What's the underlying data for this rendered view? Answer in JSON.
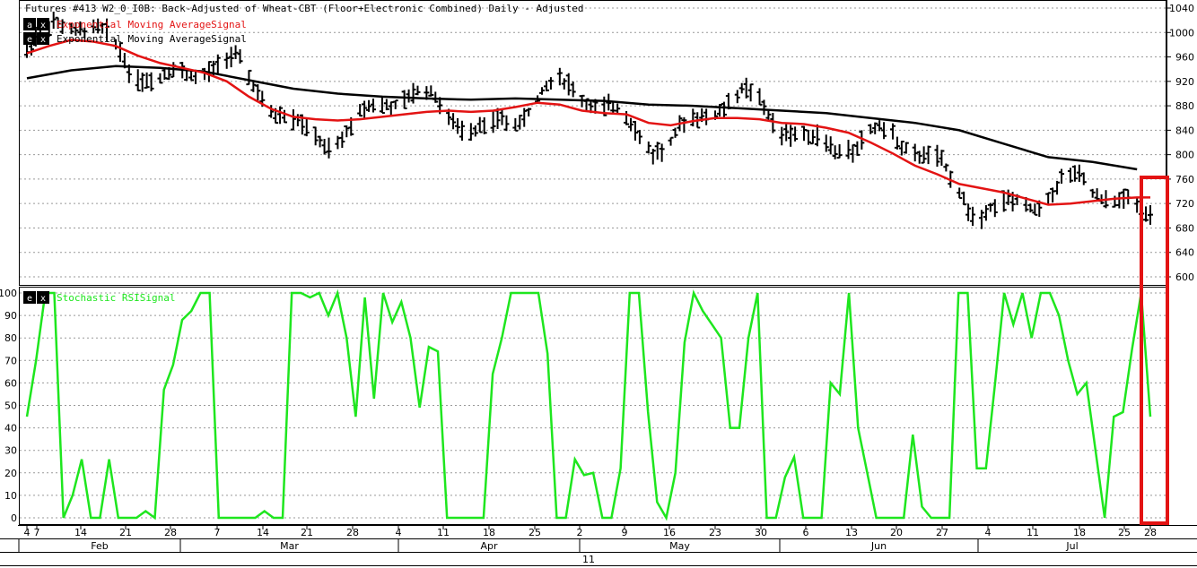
{
  "header": {
    "title": "Futures #413 W2_0_I0B: Back-Adjusted of Wheat-CBT (Floor+Electronic Combined) Daily -  Adjusted",
    "legend_price": [
      {
        "buttons": [
          "a",
          "x"
        ],
        "label": "Exponential Moving AverageSignal",
        "color": "#e31313"
      },
      {
        "buttons": [
          "e",
          "x"
        ],
        "label": "Exponential Moving AverageSignal",
        "color": "#000000"
      }
    ],
    "legend_indicator": {
      "buttons": [
        "e",
        "x"
      ],
      "label": "Stochastic RSISignal",
      "color": "#1ee61e"
    }
  },
  "axis": {
    "date_ticks": [
      "4",
      "7",
      "14",
      "21",
      "28",
      "7",
      "14",
      "21",
      "28",
      "4",
      "11",
      "18",
      "25",
      "2",
      "9",
      "16",
      "23",
      "30",
      "6",
      "13",
      "20",
      "27",
      "4",
      "11",
      "18",
      "25",
      "28"
    ],
    "months": [
      "Feb",
      "Mar",
      "Apr",
      "May",
      "Jun",
      "Jul"
    ],
    "year_label": "11"
  },
  "chart_data": [
    {
      "type": "line",
      "title": "",
      "xlabel": "",
      "ylabel": "",
      "ylim": [
        600,
        1040
      ],
      "y_ticks": [
        600,
        640,
        680,
        720,
        760,
        800,
        840,
        880,
        920,
        960,
        1000,
        1040
      ],
      "grid": true,
      "bar_style": "OHLC",
      "series": [
        {
          "name": "Exponential Moving AverageSignal",
          "color": "#e31313",
          "points": [
            [
              0,
              966
            ],
            [
              5,
              978
            ],
            [
              10,
              988
            ],
            [
              15,
              985
            ],
            [
              20,
              978
            ],
            [
              25,
              962
            ],
            [
              30,
              950
            ],
            [
              35,
              942
            ],
            [
              40,
              934
            ],
            [
              45,
              920
            ],
            [
              50,
              895
            ],
            [
              55,
              875
            ],
            [
              60,
              862
            ],
            [
              65,
              858
            ],
            [
              70,
              856
            ],
            [
              75,
              858
            ],
            [
              80,
              862
            ],
            [
              85,
              866
            ],
            [
              90,
              870
            ],
            [
              95,
              872
            ],
            [
              100,
              870
            ],
            [
              105,
              872
            ],
            [
              110,
              878
            ],
            [
              115,
              885
            ],
            [
              120,
              882
            ],
            [
              125,
              872
            ],
            [
              130,
              868
            ],
            [
              135,
              866
            ],
            [
              140,
              852
            ],
            [
              145,
              848
            ],
            [
              150,
              855
            ],
            [
              155,
              860
            ],
            [
              160,
              860
            ],
            [
              165,
              858
            ],
            [
              170,
              852
            ],
            [
              175,
              850
            ],
            [
              180,
              844
            ],
            [
              185,
              836
            ],
            [
              190,
              820
            ],
            [
              195,
              802
            ],
            [
              200,
              782
            ],
            [
              205,
              768
            ],
            [
              210,
              752
            ],
            [
              215,
              745
            ],
            [
              220,
              738
            ],
            [
              225,
              728
            ],
            [
              230,
              718
            ],
            [
              235,
              720
            ],
            [
              240,
              724
            ],
            [
              245,
              728
            ],
            [
              250,
              730
            ],
            [
              253,
              730
            ]
          ]
        },
        {
          "name": "Exponential Moving AverageSignal",
          "color": "#000000",
          "points": [
            [
              0,
              925
            ],
            [
              10,
              938
            ],
            [
              20,
              945
            ],
            [
              30,
              942
            ],
            [
              40,
              936
            ],
            [
              50,
              922
            ],
            [
              60,
              908
            ],
            [
              70,
              900
            ],
            [
              80,
              895
            ],
            [
              90,
              892
            ],
            [
              100,
              890
            ],
            [
              110,
              892
            ],
            [
              120,
              890
            ],
            [
              130,
              888
            ],
            [
              140,
              882
            ],
            [
              150,
              880
            ],
            [
              160,
              876
            ],
            [
              170,
              872
            ],
            [
              180,
              868
            ],
            [
              190,
              860
            ],
            [
              200,
              852
            ],
            [
              210,
              840
            ],
            [
              220,
              818
            ],
            [
              230,
              796
            ],
            [
              240,
              788
            ],
            [
              250,
              776
            ]
          ]
        }
      ],
      "ohlc": {
        "last_label": "28",
        "highlight_last": true
      }
    },
    {
      "type": "line",
      "title": "",
      "xlabel": "",
      "ylabel": "",
      "ylim": [
        0,
        100
      ],
      "y_ticks": [
        0,
        10,
        20,
        30,
        40,
        50,
        60,
        70,
        80,
        90,
        100
      ],
      "grid": true,
      "series": [
        {
          "name": "Stochastic RSISignal",
          "color": "#1ee61e",
          "values": [
            45,
            70,
            100,
            100,
            0,
            10,
            26,
            0,
            0,
            26,
            0,
            0,
            0,
            3,
            0,
            57,
            68,
            88,
            92,
            100,
            100,
            0,
            0,
            0,
            0,
            0,
            3,
            0,
            0,
            100,
            100,
            98,
            100,
            90,
            100,
            80,
            45,
            98,
            53,
            100,
            87,
            96,
            80,
            49,
            76,
            74,
            0,
            0,
            0,
            0,
            0,
            64,
            80,
            100,
            100,
            100,
            100,
            73,
            0,
            0,
            26,
            19,
            20,
            0,
            0,
            22,
            100,
            100,
            47,
            7,
            0,
            20,
            78,
            100,
            92,
            86,
            80,
            40,
            40,
            80,
            100,
            0,
            0,
            18,
            27,
            0,
            0,
            0,
            60,
            55,
            100,
            40,
            20,
            0,
            0,
            0,
            0,
            37,
            5,
            0,
            0,
            0,
            100,
            100,
            22,
            22,
            60,
            100,
            86,
            100,
            80,
            100,
            100,
            90,
            70,
            55,
            60,
            30,
            0,
            45,
            47,
            75,
            100,
            45
          ]
        }
      ]
    }
  ]
}
